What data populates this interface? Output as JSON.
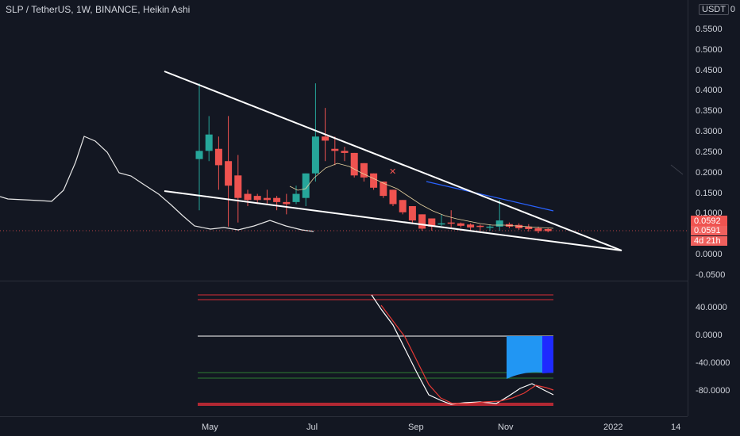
{
  "header": {
    "title": "SLP / TetherUS, 1W, BINANCE, Heikin Ashi"
  },
  "price_axis": {
    "currency_label": "USDT",
    "ticks": [
      "0.5500",
      "0.5000",
      "0.4500",
      "0.4000",
      "0.3500",
      "0.3000",
      "0.2500",
      "0.2000",
      "0.1500",
      "0.1000",
      "0.0000",
      "-0.0500"
    ],
    "top_label": "0"
  },
  "indicator_axis": {
    "ticks": [
      "40.0000",
      "0.0000",
      "-40.0000",
      "-80.0000"
    ]
  },
  "time_axis": {
    "ticks": [
      "May",
      "Jul",
      "Sep",
      "Nov",
      "2022",
      "14"
    ]
  },
  "last_price": {
    "price": "0.0592",
    "close": "0.0591",
    "countdown": "4d 21h"
  },
  "colors": {
    "background": "#131722",
    "up": "#26a69a",
    "down": "#ef5350",
    "trendline": "#ffffff",
    "ma_line": "#e8d4a0",
    "blue_line": "#2962ff",
    "osc_white": "#ffffff",
    "osc_red": "#ef5350",
    "level_red": "#b22833",
    "level_green": "#2e7d32",
    "hist_blue": "#2196f3",
    "hist_dark_blue": "#1e2aff"
  },
  "chart_data": {
    "type": "candlestick",
    "series": [
      {
        "name": "",
        "candles": [
          {
            "o": 0.235,
            "h": 0.42,
            "l": 0.11,
            "c": 0.255
          },
          {
            "o": 0.255,
            "h": 0.34,
            "l": 0.23,
            "c": 0.295
          },
          {
            "o": 0.26,
            "h": 0.29,
            "l": 0.16,
            "c": 0.22
          },
          {
            "o": 0.23,
            "h": 0.34,
            "l": 0.07,
            "c": 0.17
          },
          {
            "o": 0.195,
            "h": 0.245,
            "l": 0.08,
            "c": 0.14
          },
          {
            "o": 0.15,
            "h": 0.16,
            "l": 0.12,
            "c": 0.135
          },
          {
            "o": 0.145,
            "h": 0.15,
            "l": 0.125,
            "c": 0.135
          },
          {
            "o": 0.14,
            "h": 0.16,
            "l": 0.125,
            "c": 0.135
          },
          {
            "o": 0.14,
            "h": 0.145,
            "l": 0.11,
            "c": 0.13
          },
          {
            "o": 0.13,
            "h": 0.15,
            "l": 0.1,
            "c": 0.125
          },
          {
            "o": 0.13,
            "h": 0.17,
            "l": 0.125,
            "c": 0.15
          },
          {
            "o": 0.14,
            "h": 0.2,
            "l": 0.12,
            "c": 0.2
          },
          {
            "o": 0.2,
            "h": 0.42,
            "l": 0.18,
            "c": 0.29
          },
          {
            "o": 0.29,
            "h": 0.36,
            "l": 0.23,
            "c": 0.28
          },
          {
            "o": 0.26,
            "h": 0.29,
            "l": 0.22,
            "c": 0.255
          },
          {
            "o": 0.255,
            "h": 0.265,
            "l": 0.23,
            "c": 0.25
          },
          {
            "o": 0.25,
            "h": 0.25,
            "l": 0.19,
            "c": 0.195
          },
          {
            "o": 0.225,
            "h": 0.225,
            "l": 0.18,
            "c": 0.19
          },
          {
            "o": 0.2,
            "h": 0.2,
            "l": 0.16,
            "c": 0.165
          },
          {
            "o": 0.18,
            "h": 0.18,
            "l": 0.14,
            "c": 0.145
          },
          {
            "o": 0.16,
            "h": 0.16,
            "l": 0.12,
            "c": 0.125
          },
          {
            "o": 0.135,
            "h": 0.135,
            "l": 0.1,
            "c": 0.105
          },
          {
            "o": 0.12,
            "h": 0.12,
            "l": 0.08,
            "c": 0.085
          },
          {
            "o": 0.1,
            "h": 0.1,
            "l": 0.06,
            "c": 0.065
          },
          {
            "o": 0.09,
            "h": 0.09,
            "l": 0.06,
            "c": 0.07
          },
          {
            "o": 0.078,
            "h": 0.1,
            "l": 0.072,
            "c": 0.078
          },
          {
            "o": 0.08,
            "h": 0.11,
            "l": 0.068,
            "c": 0.078
          },
          {
            "o": 0.078,
            "h": 0.08,
            "l": 0.068,
            "c": 0.072
          },
          {
            "o": 0.075,
            "h": 0.078,
            "l": 0.06,
            "c": 0.068
          },
          {
            "o": 0.072,
            "h": 0.075,
            "l": 0.06,
            "c": 0.07
          },
          {
            "o": 0.07,
            "h": 0.075,
            "l": 0.06,
            "c": 0.07
          },
          {
            "o": 0.07,
            "h": 0.135,
            "l": 0.06,
            "c": 0.085
          },
          {
            "o": 0.076,
            "h": 0.08,
            "l": 0.066,
            "c": 0.07
          },
          {
            "o": 0.074,
            "h": 0.078,
            "l": 0.062,
            "c": 0.066
          },
          {
            "o": 0.07,
            "h": 0.076,
            "l": 0.058,
            "c": 0.064
          },
          {
            "o": 0.066,
            "h": 0.07,
            "l": 0.054,
            "c": 0.059
          },
          {
            "o": 0.064,
            "h": 0.066,
            "l": 0.056,
            "c": 0.059
          }
        ]
      }
    ],
    "ylim": [
      -0.05,
      0.55
    ],
    "indicator_ylim": [
      -100,
      60
    ],
    "xlabel": "",
    "ylabel": ""
  }
}
